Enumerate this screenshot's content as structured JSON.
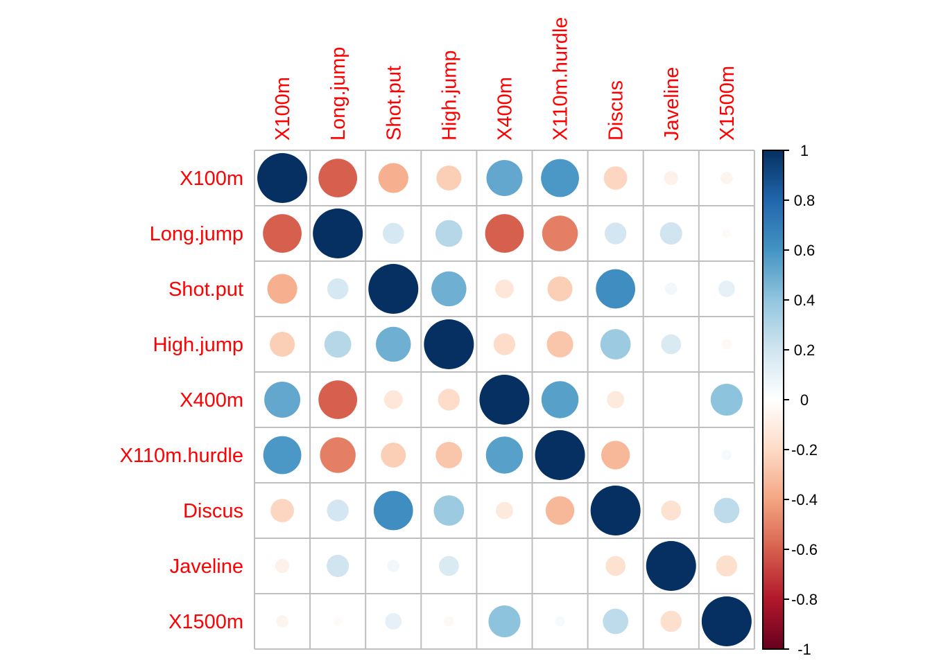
{
  "chart_data": {
    "type": "heatmap",
    "method": "circle",
    "title": "",
    "variables": [
      "X100m",
      "Long.jump",
      "Shot.put",
      "High.jump",
      "X400m",
      "X110m.hurdle",
      "Discus",
      "Javeline",
      "X1500m"
    ],
    "matrix": [
      [
        1.0,
        -0.6,
        -0.36,
        -0.25,
        0.52,
        0.58,
        -0.22,
        -0.08,
        -0.06
      ],
      [
        -0.6,
        1.0,
        0.18,
        0.29,
        -0.6,
        -0.51,
        0.19,
        0.2,
        -0.03
      ],
      [
        -0.36,
        0.18,
        1.0,
        0.49,
        -0.14,
        -0.25,
        0.62,
        0.06,
        0.11
      ],
      [
        -0.25,
        0.29,
        0.49,
        1.0,
        -0.19,
        -0.28,
        0.37,
        0.16,
        -0.04
      ],
      [
        0.52,
        -0.6,
        -0.14,
        -0.19,
        1.0,
        0.55,
        -0.12,
        0.0,
        0.41
      ],
      [
        0.58,
        -0.51,
        -0.25,
        -0.28,
        0.55,
        1.0,
        -0.33,
        0.01,
        0.04
      ],
      [
        -0.22,
        0.19,
        0.62,
        0.37,
        -0.12,
        -0.33,
        1.0,
        -0.16,
        0.26
      ],
      [
        -0.08,
        0.2,
        0.06,
        0.16,
        0.0,
        0.01,
        -0.16,
        1.0,
        -0.18
      ],
      [
        -0.06,
        -0.03,
        0.11,
        -0.04,
        0.41,
        0.04,
        0.26,
        -0.18,
        1.0
      ]
    ],
    "colorbar": {
      "range": [
        -1,
        1
      ],
      "ticks": [
        "1",
        "0.8",
        "0.6",
        "0.4",
        "0.2",
        "0",
        "-0.2",
        "-0.4",
        "-0.6",
        "-0.8",
        "-1"
      ],
      "tick_values": [
        1,
        0.8,
        0.6,
        0.4,
        0.2,
        0,
        -0.2,
        -0.4,
        -0.6,
        -0.8,
        -1
      ],
      "palette": [
        "#67001F",
        "#B2182B",
        "#D6604D",
        "#F4A582",
        "#FDDBC7",
        "#FFFFFF",
        "#D1E5F0",
        "#92C5DE",
        "#4393C3",
        "#2166AC",
        "#053061"
      ],
      "placement": "right"
    },
    "label_color": "#FF0000",
    "grid_color": "#BEBEBE"
  }
}
